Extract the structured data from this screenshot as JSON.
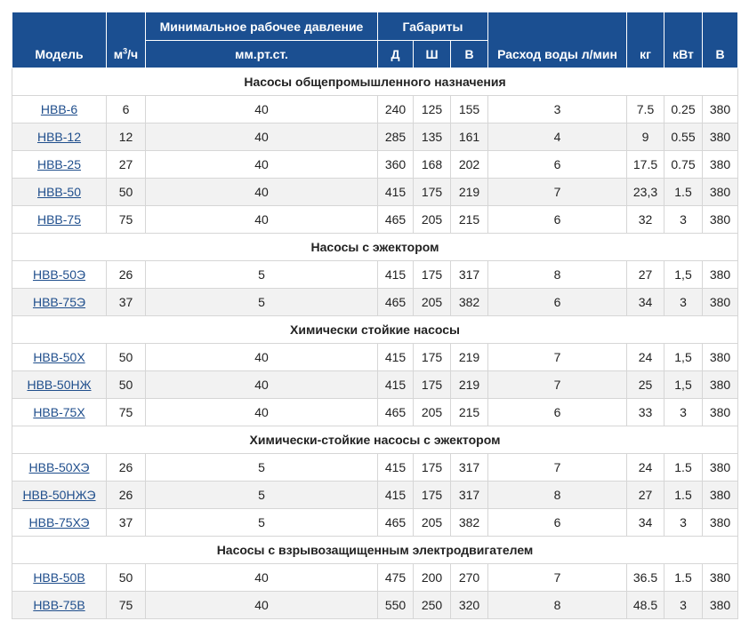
{
  "header": {
    "model": "Модель",
    "flow_unit_prefix": "м",
    "flow_unit_sup": "3",
    "flow_unit_suffix": "/ч",
    "min_pressure": "Минимальное рабочее давление",
    "pressure_unit": "мм.рт.ст.",
    "dimensions": "Габариты",
    "dim_d": "Д",
    "dim_w": "Ш",
    "dim_h": "В",
    "water_flow": "Расход воды л/мин",
    "kg": "кг",
    "kw": "кВт",
    "volt": "В"
  },
  "sections": [
    {
      "title": "Насосы общепромышленного назначения",
      "rows": [
        {
          "model": "НВВ-6",
          "flow": "6",
          "pressure": "40",
          "d": "240",
          "w": "125",
          "h": "155",
          "water": "3",
          "kg": "7.5",
          "kw": "0.25",
          "v": "380"
        },
        {
          "model": "НВВ-12",
          "flow": "12",
          "pressure": "40",
          "d": "285",
          "w": "135",
          "h": "161",
          "water": "4",
          "kg": "9",
          "kw": "0.55",
          "v": "380"
        },
        {
          "model": "НВВ-25",
          "flow": "27",
          "pressure": "40",
          "d": "360",
          "w": "168",
          "h": "202",
          "water": "6",
          "kg": "17.5",
          "kw": "0.75",
          "v": "380"
        },
        {
          "model": "НВВ-50",
          "flow": "50",
          "pressure": "40",
          "d": "415",
          "w": "175",
          "h": "219",
          "water": "7",
          "kg": "23,3",
          "kw": "1.5",
          "v": "380"
        },
        {
          "model": "НВВ-75",
          "flow": "75",
          "pressure": "40",
          "d": "465",
          "w": "205",
          "h": "215",
          "water": "6",
          "kg": "32",
          "kw": "3",
          "v": "380"
        }
      ]
    },
    {
      "title": "Насосы с эжектором",
      "rows": [
        {
          "model": "НВВ-50Э",
          "flow": "26",
          "pressure": "5",
          "d": "415",
          "w": "175",
          "h": "317",
          "water": "8",
          "kg": "27",
          "kw": "1,5",
          "v": "380"
        },
        {
          "model": "НВВ-75Э",
          "flow": "37",
          "pressure": "5",
          "d": "465",
          "w": "205",
          "h": "382",
          "water": "6",
          "kg": "34",
          "kw": "3",
          "v": "380"
        }
      ]
    },
    {
      "title": "Химически стойкие насосы",
      "rows": [
        {
          "model": "НВВ-50Х",
          "flow": "50",
          "pressure": "40",
          "d": "415",
          "w": "175",
          "h": "219",
          "water": "7",
          "kg": "24",
          "kw": "1,5",
          "v": "380"
        },
        {
          "model": "НВВ-50НЖ",
          "flow": "50",
          "pressure": "40",
          "d": "415",
          "w": "175",
          "h": "219",
          "water": "7",
          "kg": "25",
          "kw": "1,5",
          "v": "380"
        },
        {
          "model": "НВВ-75Х",
          "flow": "75",
          "pressure": "40",
          "d": "465",
          "w": "205",
          "h": "215",
          "water": "6",
          "kg": "33",
          "kw": "3",
          "v": "380"
        }
      ]
    },
    {
      "title": "Химически-стойкие насосы с эжектором",
      "rows": [
        {
          "model": "НВВ-50ХЭ",
          "flow": "26",
          "pressure": "5",
          "d": "415",
          "w": "175",
          "h": "317",
          "water": "7",
          "kg": "24",
          "kw": "1.5",
          "v": "380"
        },
        {
          "model": "НВВ-50НЖЭ",
          "flow": "26",
          "pressure": "5",
          "d": "415",
          "w": "175",
          "h": "317",
          "water": "8",
          "kg": "27",
          "kw": "1.5",
          "v": "380"
        },
        {
          "model": "НВВ-75ХЭ",
          "flow": "37",
          "pressure": "5",
          "d": "465",
          "w": "205",
          "h": "382",
          "water": "6",
          "kg": "34",
          "kw": "3",
          "v": "380"
        }
      ]
    },
    {
      "title": "Насосы с взрывозащищенным электродвигателем",
      "rows": [
        {
          "model": "НВВ-50В",
          "flow": "50",
          "pressure": "40",
          "d": "475",
          "w": "200",
          "h": "270",
          "water": "7",
          "kg": "36.5",
          "kw": "1.5",
          "v": "380"
        },
        {
          "model": "НВВ-75В",
          "flow": "75",
          "pressure": "40",
          "d": "550",
          "w": "250",
          "h": "320",
          "water": "8",
          "kg": "48.5",
          "kw": "3",
          "v": "380"
        }
      ]
    }
  ]
}
